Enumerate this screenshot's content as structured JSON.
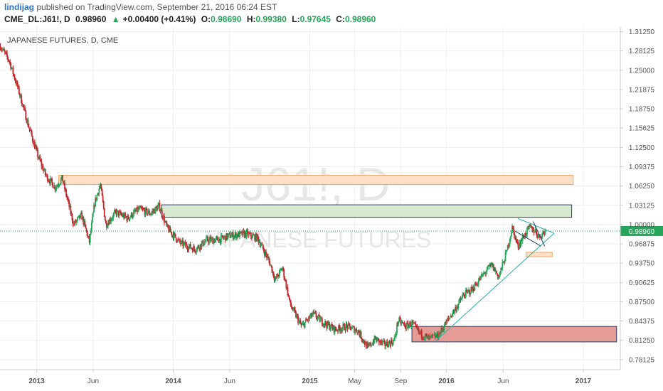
{
  "header": {
    "author": "lindijag",
    "published": "published on TradingView.com, September 21, 2016 06:24 EST"
  },
  "quote": {
    "symbol": "CME_DL:J61!, D",
    "last": "0.98960",
    "change": "+0.00400 (+0.41%)",
    "open_label": "O:",
    "open": "0.98690",
    "high_label": "H:",
    "high": "0.99380",
    "low_label": "L:",
    "low": "0.97645",
    "close_label": "C:",
    "close": "0.98960"
  },
  "chart_data": {
    "type": "candlestick",
    "title": "JAPANESE FUTURES, D, CME",
    "watermark_symbol": "J61!, D",
    "watermark_name": "JAPANESE FUTURES",
    "y_ticks": [
      "1.31250",
      "1.28125",
      "1.25000",
      "1.21875",
      "1.18750",
      "1.15625",
      "1.12500",
      "1.09375",
      "1.06250",
      "1.03125",
      "1.00000",
      "0.96875",
      "0.93750",
      "0.90625",
      "0.87500",
      "0.84375",
      "0.81250",
      "0.78125"
    ],
    "ylim": [
      0.765,
      1.32
    ],
    "x_labels": [
      "2013",
      "Jun",
      "2014",
      "Jun",
      "2015",
      "May",
      "Sep",
      "2016",
      "Jun",
      "2017"
    ],
    "x_label_dates": [
      "2013-01-01",
      "2013-06-01",
      "2014-01-01",
      "2014-06-01",
      "2015-01-01",
      "2015-05-01",
      "2015-09-01",
      "2016-01-01",
      "2016-06-01",
      "2017-01-01"
    ],
    "x_range": [
      "2012-09-25",
      "2017-04-10"
    ],
    "last_price": 0.9896,
    "last_price_label": "0.98960",
    "price_path": [
      [
        "2012-09-26",
        1.289
      ],
      [
        "2012-10-20",
        1.265
      ],
      [
        "2012-11-15",
        1.215
      ],
      [
        "2012-12-10",
        1.16
      ],
      [
        "2013-01-05",
        1.11
      ],
      [
        "2013-01-25",
        1.08
      ],
      [
        "2013-02-20",
        1.06
      ],
      [
        "2013-03-10",
        1.075
      ],
      [
        "2013-04-10",
        1.0
      ],
      [
        "2013-05-01",
        1.015
      ],
      [
        "2013-05-22",
        0.972
      ],
      [
        "2013-06-05",
        1.035
      ],
      [
        "2013-06-20",
        1.065
      ],
      [
        "2013-07-05",
        1.0
      ],
      [
        "2013-08-01",
        1.02
      ],
      [
        "2013-09-01",
        1.01
      ],
      [
        "2013-10-01",
        1.025
      ],
      [
        "2013-11-01",
        1.018
      ],
      [
        "2013-11-25",
        1.03
      ],
      [
        "2013-12-15",
        0.995
      ],
      [
        "2014-01-20",
        0.97
      ],
      [
        "2014-03-01",
        0.96
      ],
      [
        "2014-04-01",
        0.975
      ],
      [
        "2014-05-01",
        0.975
      ],
      [
        "2014-06-01",
        0.982
      ],
      [
        "2014-07-15",
        0.985
      ],
      [
        "2014-08-15",
        0.978
      ],
      [
        "2014-09-15",
        0.94
      ],
      [
        "2014-10-01",
        0.91
      ],
      [
        "2014-10-20",
        0.93
      ],
      [
        "2014-11-10",
        0.87
      ],
      [
        "2014-12-10",
        0.835
      ],
      [
        "2015-01-10",
        0.855
      ],
      [
        "2015-02-10",
        0.84
      ],
      [
        "2015-03-10",
        0.83
      ],
      [
        "2015-04-10",
        0.835
      ],
      [
        "2015-05-10",
        0.828
      ],
      [
        "2015-06-05",
        0.8
      ],
      [
        "2015-06-25",
        0.815
      ],
      [
        "2015-07-20",
        0.805
      ],
      [
        "2015-08-15",
        0.812
      ],
      [
        "2015-08-25",
        0.845
      ],
      [
        "2015-09-15",
        0.835
      ],
      [
        "2015-10-01",
        0.84
      ],
      [
        "2015-10-20",
        0.825
      ],
      [
        "2015-11-15",
        0.815
      ],
      [
        "2015-12-10",
        0.82
      ],
      [
        "2015-12-25",
        0.835
      ],
      [
        "2016-01-10",
        0.85
      ],
      [
        "2016-02-01",
        0.87
      ],
      [
        "2016-02-15",
        0.885
      ],
      [
        "2016-03-10",
        0.895
      ],
      [
        "2016-04-10",
        0.92
      ],
      [
        "2016-05-01",
        0.935
      ],
      [
        "2016-05-20",
        0.915
      ],
      [
        "2016-06-10",
        0.955
      ],
      [
        "2016-06-25",
        0.995
      ],
      [
        "2016-07-10",
        0.965
      ],
      [
        "2016-07-25",
        0.98
      ],
      [
        "2016-08-10",
        0.995
      ],
      [
        "2016-08-25",
        0.99
      ],
      [
        "2016-09-05",
        0.98
      ],
      [
        "2016-09-21",
        0.9896
      ]
    ],
    "zones": [
      {
        "from": "2013-03-01",
        "to": "2016-12-05",
        "low": 1.065,
        "high": 1.08,
        "fill": "#fde0c7",
        "stroke": "#f4a460"
      },
      {
        "from": "2013-12-01",
        "to": "2016-12-01",
        "low": 1.012,
        "high": 1.032,
        "fill": "#d9ead3",
        "stroke": "#2e3a6e"
      },
      {
        "from": "2015-10-01",
        "to": "2017-03-31",
        "low": 0.81,
        "high": 0.835,
        "fill": "#e59c97",
        "stroke": "#2e3a6e"
      },
      {
        "from": "2016-08-01",
        "to": "2016-10-10",
        "low": 0.948,
        "high": 0.955,
        "fill": "#fde0c7",
        "stroke": "#f4a460"
      }
    ],
    "trendlines": [
      {
        "points": [
          [
            "2015-12-01",
            0.81
          ],
          [
            "2016-10-15",
            0.986
          ]
        ],
        "color": "#2ab0a8"
      },
      {
        "points": [
          [
            "2016-07-10",
            1.01
          ],
          [
            "2016-10-15",
            0.986
          ]
        ],
        "color": "#2ab0a8"
      },
      {
        "points": [
          [
            "2016-07-01",
            0.99
          ],
          [
            "2016-09-10",
            0.965
          ]
        ],
        "color": "#2e3a6e"
      },
      {
        "points": [
          [
            "2016-08-20",
            1.005
          ],
          [
            "2016-09-20",
            0.965
          ]
        ],
        "color": "#2e3a6e"
      }
    ],
    "colors": {
      "up": "#26a65b",
      "down": "#c2272d",
      "grid": "#eeeeee",
      "axis": "#cccccc",
      "price_line": "#26a65b",
      "price_tag": "#26a65b"
    }
  }
}
